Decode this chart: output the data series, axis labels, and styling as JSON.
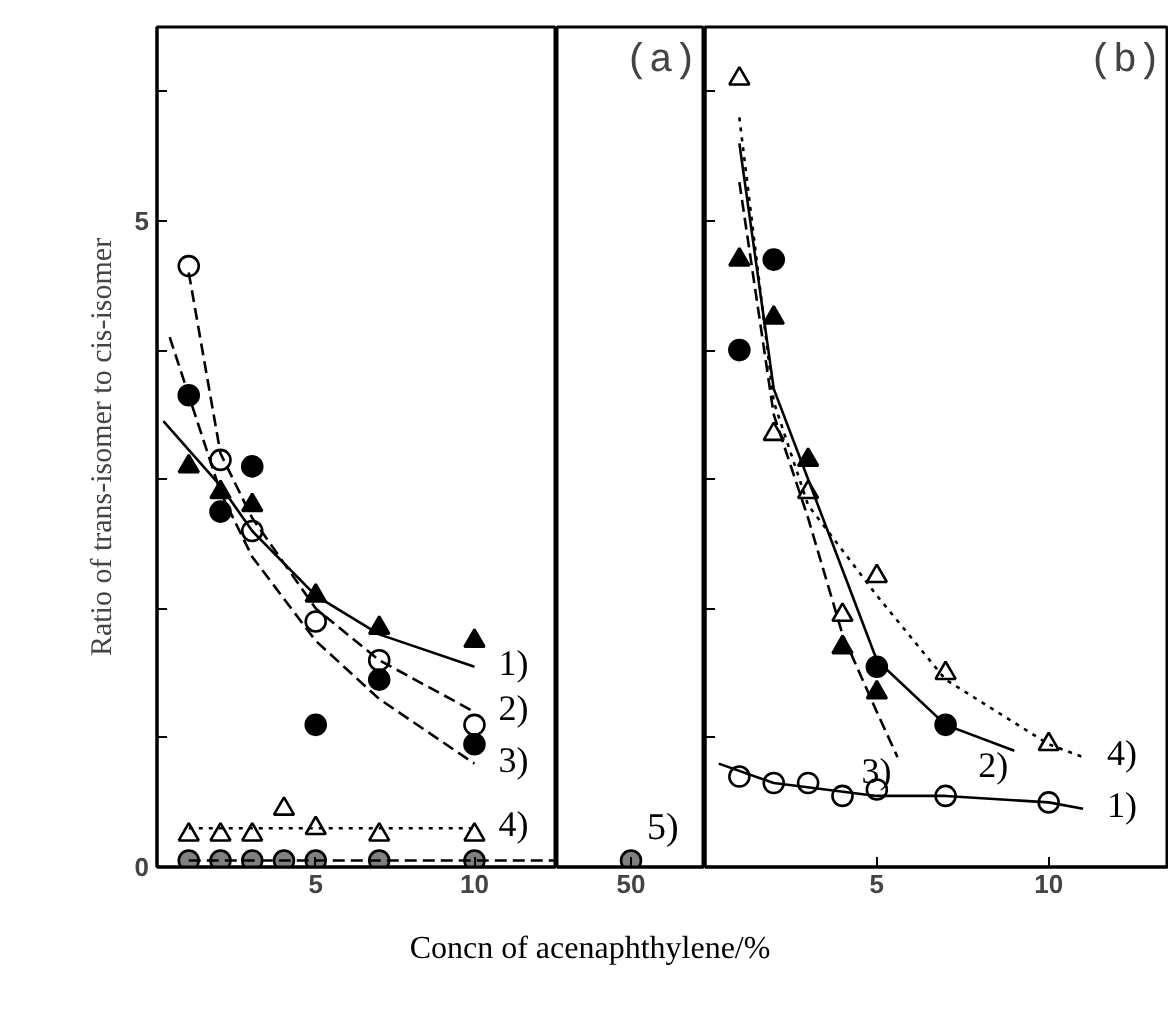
{
  "chart_data": [
    {
      "type": "scatter",
      "ylabel": "Ratio of trans-isomer to cis-isomer",
      "xlabel": "Concn of acenaphthylene/%",
      "xlim": [
        0,
        12.6
      ],
      "ylim": [
        0,
        6.5
      ],
      "xticks": [
        5,
        10
      ],
      "yticks": [
        0,
        {
          "value": 1,
          "label": null
        },
        {
          "value": 2,
          "label": null
        },
        {
          "value": 3,
          "label": null
        },
        {
          "value": 4,
          "label": null
        },
        5,
        {
          "value": 6,
          "label": null
        }
      ],
      "series": [
        {
          "color": "#000000",
          "marker": "triangle",
          "x": [
            1,
            2,
            3,
            5,
            7,
            10
          ],
          "values": [
            3.1,
            2.9,
            2.8,
            2.1,
            1.85,
            1.75
          ]
        },
        {
          "color": "#ffffff",
          "marker": "circle",
          "x": [
            1,
            2,
            3,
            5,
            7,
            10
          ],
          "values": [
            4.65,
            3.15,
            2.6,
            1.9,
            1.6,
            1.1
          ]
        },
        {
          "color": "#000000",
          "marker": "circle",
          "x": [
            1,
            2,
            3,
            5,
            7,
            10
          ],
          "values": [
            3.65,
            2.75,
            3.1,
            1.1,
            1.45,
            0.95
          ]
        },
        {
          "color": "#ffffff",
          "marker": "triangle",
          "x": [
            1,
            2,
            3,
            4,
            5,
            7,
            10
          ],
          "values": [
            0.25,
            0.25,
            0.25,
            0.45,
            0.3,
            0.25,
            0.25
          ]
        },
        {
          "color": "#808080",
          "marker": "circle",
          "x": [
            1,
            2,
            3,
            4,
            5,
            7,
            10
          ],
          "values": [
            0.05,
            0.05,
            0.05,
            0.05,
            0.05,
            0.05,
            0.05
          ]
        },
        {
          "type": "line",
          "name": "1)",
          "color": "#000000",
          "line_style": "solid",
          "x": [
            0.2,
            2,
            3,
            5,
            7,
            10
          ],
          "values": [
            3.45,
            2.95,
            2.6,
            2.1,
            1.8,
            1.55
          ]
        },
        {
          "type": "line",
          "name": "2)",
          "color": "#000000",
          "line_style": "dashed",
          "x": [
            1,
            2,
            3,
            5,
            7,
            10
          ],
          "values": [
            4.6,
            3.2,
            2.7,
            2.0,
            1.6,
            1.2
          ]
        },
        {
          "type": "line",
          "name": "3)",
          "color": "#000000",
          "line_style": "dashed",
          "x": [
            0.4,
            2,
            3,
            5,
            7,
            10
          ],
          "values": [
            4.1,
            2.9,
            2.4,
            1.75,
            1.3,
            0.8
          ]
        },
        {
          "type": "line",
          "name": "4)",
          "color": "#000000",
          "line_style": "dotted",
          "x": [
            1,
            10
          ],
          "values": [
            0.3,
            0.3
          ]
        },
        {
          "type": "line",
          "color": "#000000",
          "line_style": "dashed",
          "x": [
            1,
            12.6
          ],
          "values": [
            0.05,
            0.05
          ]
        }
      ]
    },
    {
      "type": "scatter",
      "title": "(a)",
      "categories": [
        "50"
      ],
      "ylim": [
        0,
        6.5
      ],
      "tick_labels": "x",
      "series": [
        {
          "name": "5)",
          "color": "#808080",
          "marker": "circle",
          "values": [
            0.05
          ]
        }
      ]
    },
    {
      "type": "scatter",
      "title": "(b)",
      "xlim": [
        0,
        13.5
      ],
      "ylim": [
        0,
        6.5
      ],
      "xticks": [
        5,
        10
      ],
      "yticks": [
        {
          "value": 1,
          "label": null
        },
        {
          "value": 2,
          "label": null
        },
        {
          "value": 3,
          "label": null
        },
        {
          "value": 4,
          "label": null
        },
        {
          "value": 5,
          "label": null
        },
        {
          "value": 6,
          "label": null
        }
      ],
      "tick_labels": "x",
      "series": [
        {
          "color": "#ffffff",
          "marker": "triangle",
          "x": [
            1,
            2,
            3,
            4,
            5,
            7,
            10
          ],
          "values": [
            6.1,
            3.35,
            2.9,
            1.95,
            2.25,
            1.5,
            0.95
          ]
        },
        {
          "color": "#000000",
          "marker": "triangle",
          "x": [
            1,
            2,
            3,
            4,
            5
          ],
          "values": [
            4.7,
            4.25,
            3.15,
            1.7,
            1.35
          ]
        },
        {
          "color": "#000000",
          "marker": "circle",
          "x": [
            1,
            2,
            5,
            7
          ],
          "values": [
            4.0,
            4.7,
            1.55,
            1.1
          ]
        },
        {
          "color": "#ffffff",
          "marker": "circle",
          "x": [
            1,
            2,
            3,
            4,
            5,
            7,
            10
          ],
          "values": [
            0.7,
            0.65,
            0.65,
            0.55,
            0.6,
            0.55,
            0.5
          ]
        },
        {
          "type": "line",
          "name": "4)",
          "color": "#000000",
          "line_style": "dotted",
          "x": [
            1,
            2,
            3,
            5,
            7,
            10,
            11
          ],
          "values": [
            5.8,
            3.6,
            2.8,
            2.1,
            1.45,
            0.95,
            0.85
          ]
        },
        {
          "type": "line",
          "name": "2)",
          "color": "#000000",
          "line_style": "solid",
          "x": [
            1,
            2,
            3,
            4,
            5,
            7,
            9
          ],
          "values": [
            5.6,
            3.7,
            3.0,
            2.3,
            1.6,
            1.1,
            0.9
          ]
        },
        {
          "type": "line",
          "name": "3)",
          "color": "#000000",
          "line_style": "dashed",
          "x": [
            1,
            2,
            3,
            4,
            5,
            5.6
          ],
          "values": [
            5.3,
            3.5,
            2.7,
            1.8,
            1.2,
            0.85
          ]
        },
        {
          "type": "line",
          "name": "1)",
          "color": "#000000",
          "line_style": "solid",
          "x": [
            0.4,
            2,
            5,
            7,
            10,
            11
          ],
          "values": [
            0.8,
            0.65,
            0.55,
            0.55,
            0.5,
            0.45
          ]
        }
      ]
    }
  ]
}
